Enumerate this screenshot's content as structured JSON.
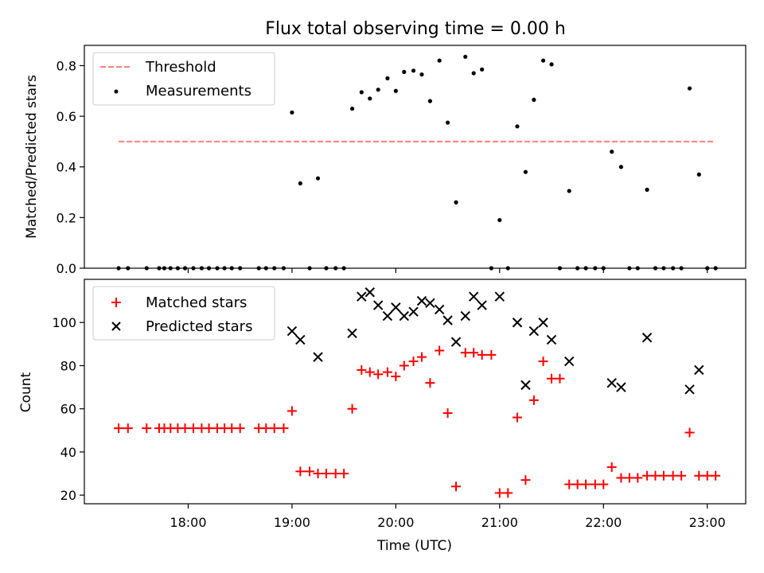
{
  "title": "Flux total observing time = 0.00 h",
  "chart_data": [
    {
      "type": "scatter",
      "ylabel": "Matched/Predicted stars",
      "xlabel": "",
      "x_unit": "UTC hours",
      "xlim": [
        17.0,
        23.37
      ],
      "ylim": [
        0.0,
        0.88
      ],
      "yticks": [
        0.0,
        0.2,
        0.4,
        0.6,
        0.8
      ],
      "ytick_labels": [
        "0.0",
        "0.2",
        "0.4",
        "0.6",
        "0.8"
      ],
      "legend": {
        "placement": "top-left",
        "entries": [
          {
            "label": "Threshold"
          },
          {
            "label": "Measurements"
          }
        ]
      },
      "threshold": {
        "name": "Threshold",
        "value": 0.5,
        "x_range": [
          17.33,
          23.08
        ],
        "color": "#ff7f7f"
      },
      "measurements": {
        "name": "Measurements",
        "color": "#000000",
        "x": [
          17.33,
          17.42,
          17.6,
          17.72,
          17.77,
          17.83,
          17.9,
          17.97,
          18.05,
          18.13,
          18.2,
          18.28,
          18.35,
          18.42,
          18.5,
          18.68,
          18.75,
          18.83,
          18.92,
          19.0,
          19.08,
          19.17,
          19.25,
          19.33,
          19.42,
          19.5,
          19.58,
          19.67,
          19.75,
          19.83,
          19.92,
          20.0,
          20.08,
          20.17,
          20.25,
          20.33,
          20.42,
          20.5,
          20.58,
          20.67,
          20.75,
          20.83,
          20.92,
          21.0,
          21.08,
          21.17,
          21.25,
          21.33,
          21.42,
          21.5,
          21.58,
          21.67,
          21.75,
          21.83,
          21.92,
          22.0,
          22.08,
          22.17,
          22.25,
          22.33,
          22.42,
          22.5,
          22.58,
          22.67,
          22.75,
          22.83,
          22.92,
          23.0,
          23.08
        ],
        "y": [
          0.0,
          0.0,
          0.0,
          0.0,
          0.0,
          0.0,
          0.0,
          0.0,
          0.0,
          0.0,
          0.0,
          0.0,
          0.0,
          0.0,
          0.0,
          0.0,
          0.0,
          0.0,
          0.0,
          0.615,
          0.335,
          0.0,
          0.355,
          0.0,
          0.0,
          0.0,
          0.63,
          0.695,
          0.67,
          0.705,
          0.75,
          0.7,
          0.775,
          0.78,
          0.765,
          0.66,
          0.82,
          0.575,
          0.26,
          0.835,
          0.77,
          0.785,
          0.0,
          0.19,
          0.0,
          0.56,
          0.38,
          0.665,
          0.82,
          0.805,
          0.0,
          0.305,
          0.0,
          0.0,
          0.0,
          0.0,
          0.46,
          0.4,
          0.0,
          0.0,
          0.31,
          0.0,
          0.0,
          0.0,
          0.0,
          0.71,
          0.37,
          0.0,
          0.0
        ]
      }
    },
    {
      "type": "scatter",
      "ylabel": "Count",
      "xlabel": "Time (UTC)",
      "x_unit": "UTC hours",
      "xlim": [
        17.0,
        23.37
      ],
      "ylim": [
        16.0,
        120.0
      ],
      "yticks": [
        20,
        40,
        60,
        80,
        100
      ],
      "ytick_labels": [
        "20",
        "40",
        "60",
        "80",
        "100"
      ],
      "xticks": [
        18,
        19,
        20,
        21,
        22,
        23
      ],
      "xtick_labels": [
        "18:00",
        "19:00",
        "20:00",
        "21:00",
        "22:00",
        "23:00"
      ],
      "legend": {
        "placement": "top-left",
        "entries": [
          {
            "label": "Matched stars"
          },
          {
            "label": "Predicted stars"
          }
        ]
      },
      "series": [
        {
          "name": "Matched stars",
          "marker": "plus",
          "color": "#ff0000",
          "x": [
            17.33,
            17.42,
            17.6,
            17.72,
            17.77,
            17.83,
            17.9,
            17.97,
            18.05,
            18.13,
            18.2,
            18.28,
            18.35,
            18.42,
            18.5,
            18.68,
            18.75,
            18.83,
            18.92,
            19.0,
            19.08,
            19.17,
            19.25,
            19.33,
            19.42,
            19.5,
            19.58,
            19.67,
            19.75,
            19.83,
            19.92,
            20.0,
            20.08,
            20.17,
            20.25,
            20.33,
            20.42,
            20.5,
            20.58,
            20.67,
            20.75,
            20.83,
            20.92,
            21.0,
            21.08,
            21.17,
            21.25,
            21.33,
            21.42,
            21.5,
            21.58,
            21.67,
            21.75,
            21.83,
            21.92,
            22.0,
            22.08,
            22.17,
            22.25,
            22.33,
            22.42,
            22.5,
            22.58,
            22.67,
            22.75,
            22.83,
            22.92,
            23.0,
            23.08
          ],
          "y": [
            51,
            51,
            51,
            51,
            51,
            51,
            51,
            51,
            51,
            51,
            51,
            51,
            51,
            51,
            51,
            51,
            51,
            51,
            51,
            59,
            31,
            31,
            30,
            30,
            30,
            30,
            60,
            78,
            77,
            76,
            77,
            75,
            80,
            82,
            84,
            72,
            87,
            58,
            24,
            86,
            86,
            85,
            85,
            21,
            21,
            56,
            27,
            64,
            82,
            74,
            74,
            25,
            25,
            25,
            25,
            25,
            33,
            28,
            28,
            28,
            29,
            29,
            29,
            29,
            29,
            49,
            29,
            29,
            29
          ]
        },
        {
          "name": "Predicted stars",
          "marker": "x",
          "color": "#000000",
          "x": [
            19.0,
            19.08,
            19.25,
            19.58,
            19.67,
            19.75,
            19.83,
            19.92,
            20.0,
            20.08,
            20.17,
            20.25,
            20.33,
            20.42,
            20.5,
            20.58,
            20.67,
            20.75,
            20.83,
            21.0,
            21.17,
            21.25,
            21.33,
            21.42,
            21.5,
            21.67,
            22.08,
            22.17,
            22.42,
            22.83,
            22.92
          ],
          "y": [
            96,
            92,
            84,
            95,
            112,
            114,
            108,
            103,
            107,
            103,
            105,
            110,
            109,
            106,
            101,
            91,
            103,
            112,
            108,
            112,
            100,
            71,
            96,
            100,
            92,
            82,
            72,
            70,
            93,
            69,
            78
          ]
        }
      ]
    }
  ]
}
